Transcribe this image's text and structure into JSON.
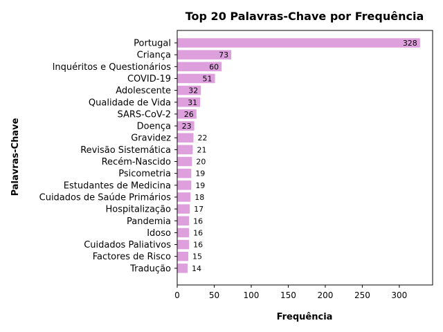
{
  "chart_data": {
    "type": "bar",
    "orientation": "horizontal",
    "title": "Top 20 Palavras-Chave por Frequência",
    "xlabel": "Frequência",
    "ylabel": "Palavras-Chave",
    "categories": [
      "Portugal",
      "Criança",
      "Inquéritos e Questionários",
      "COVID-19",
      "Adolescente",
      "Qualidade de Vida",
      "SARS-CoV-2",
      "Doença",
      "Gravidez",
      "Revisão Sistemática",
      "Recém-Nascido",
      "Psicometria",
      "Estudantes de Medicina",
      "Cuidados de Saúde Primários",
      "Hospitalização",
      "Pandemia",
      "Idoso",
      "Cuidados Paliativos",
      "Factores de Risco",
      "Tradução"
    ],
    "values": [
      328,
      73,
      60,
      51,
      32,
      31,
      26,
      23,
      22,
      21,
      20,
      19,
      19,
      18,
      17,
      16,
      16,
      16,
      15,
      14
    ],
    "xlim": [
      0,
      345
    ],
    "xticks": [
      0,
      50,
      100,
      150,
      200,
      250,
      300
    ],
    "bar_color": "#dda0dd",
    "grid": false,
    "legend": "none"
  }
}
